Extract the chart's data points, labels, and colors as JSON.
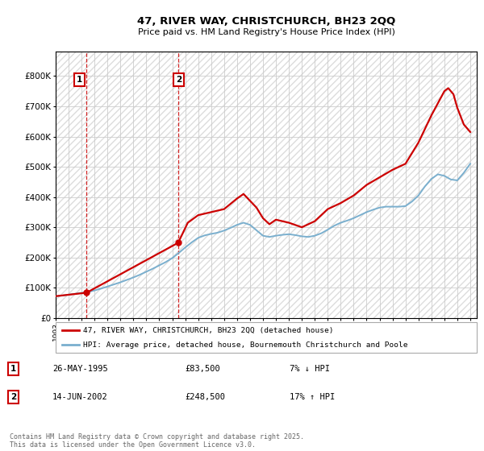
{
  "title1": "47, RIVER WAY, CHRISTCHURCH, BH23 2QQ",
  "title2": "Price paid vs. HM Land Registry's House Price Index (HPI)",
  "legend_line1": "47, RIVER WAY, CHRISTCHURCH, BH23 2QQ (detached house)",
  "legend_line2": "HPI: Average price, detached house, Bournemouth Christchurch and Poole",
  "sale1_date": "26-MAY-1995",
  "sale1_price": "£83,500",
  "sale1_hpi": "7% ↓ HPI",
  "sale2_date": "14-JUN-2002",
  "sale2_price": "£248,500",
  "sale2_hpi": "17% ↑ HPI",
  "footnote": "Contains HM Land Registry data © Crown copyright and database right 2025.\nThis data is licensed under the Open Government Licence v3.0.",
  "red_color": "#cc0000",
  "blue_color": "#7aafce",
  "grid_color": "#cccccc",
  "background_color": "#ffffff",
  "sale1_x": 1995.38,
  "sale1_y": 83500,
  "sale2_x": 2002.45,
  "sale2_y": 248500,
  "xmin": 1993,
  "xmax": 2025.5,
  "ymin": 0,
  "ymax": 880000,
  "yticks": [
    0,
    100000,
    200000,
    300000,
    400000,
    500000,
    600000,
    700000,
    800000
  ],
  "ytick_labels": [
    "£0",
    "£100K",
    "£200K",
    "£300K",
    "£400K",
    "£500K",
    "£600K",
    "£700K",
    "£800K"
  ],
  "xticks": [
    1993,
    1994,
    1995,
    1996,
    1997,
    1998,
    1999,
    2000,
    2001,
    2002,
    2003,
    2004,
    2005,
    2006,
    2007,
    2008,
    2009,
    2010,
    2011,
    2012,
    2013,
    2014,
    2015,
    2016,
    2017,
    2018,
    2019,
    2020,
    2021,
    2022,
    2023,
    2024,
    2025
  ],
  "hpi_data_x": [
    1993.0,
    1993.5,
    1994.0,
    1994.5,
    1995.0,
    1995.5,
    1996.0,
    1996.5,
    1997.0,
    1997.5,
    1998.0,
    1998.5,
    1999.0,
    1999.5,
    2000.0,
    2000.5,
    2001.0,
    2001.5,
    2002.0,
    2002.5,
    2003.0,
    2003.5,
    2004.0,
    2004.5,
    2005.0,
    2005.5,
    2006.0,
    2006.5,
    2007.0,
    2007.5,
    2008.0,
    2008.5,
    2009.0,
    2009.5,
    2010.0,
    2010.5,
    2011.0,
    2011.5,
    2012.0,
    2012.5,
    2013.0,
    2013.5,
    2014.0,
    2014.5,
    2015.0,
    2015.5,
    2016.0,
    2016.5,
    2017.0,
    2017.5,
    2018.0,
    2018.5,
    2019.0,
    2019.5,
    2020.0,
    2020.5,
    2021.0,
    2021.5,
    2022.0,
    2022.5,
    2023.0,
    2023.5,
    2024.0,
    2024.5,
    2025.0
  ],
  "hpi_data_y": [
    72000,
    74000,
    77000,
    80000,
    83000,
    86000,
    91000,
    97000,
    104000,
    111000,
    118000,
    126000,
    134000,
    143000,
    153000,
    163000,
    174000,
    185000,
    198000,
    215000,
    233000,
    250000,
    265000,
    273000,
    278000,
    282000,
    289000,
    298000,
    308000,
    315000,
    308000,
    290000,
    272000,
    268000,
    272000,
    275000,
    277000,
    274000,
    270000,
    268000,
    272000,
    280000,
    292000,
    305000,
    315000,
    322000,
    330000,
    340000,
    350000,
    358000,
    365000,
    368000,
    368000,
    368000,
    370000,
    385000,
    405000,
    435000,
    460000,
    475000,
    470000,
    458000,
    455000,
    480000,
    510000
  ],
  "price_data_x": [
    1993.0,
    1995.38,
    2002.45,
    2003.2,
    2004.0,
    2005.0,
    2006.0,
    2007.0,
    2007.5,
    2008.5,
    2009.0,
    2009.5,
    2010.0,
    2011.0,
    2012.0,
    2013.0,
    2014.0,
    2015.0,
    2016.0,
    2017.0,
    2018.0,
    2019.0,
    2020.0,
    2021.0,
    2022.0,
    2022.5,
    2023.0,
    2023.3,
    2023.7,
    2024.0,
    2024.5,
    2025.0
  ],
  "price_data_y": [
    72000,
    83500,
    248500,
    315000,
    340000,
    350000,
    360000,
    395000,
    410000,
    365000,
    330000,
    310000,
    325000,
    315000,
    300000,
    320000,
    360000,
    380000,
    405000,
    440000,
    465000,
    490000,
    510000,
    580000,
    670000,
    710000,
    750000,
    760000,
    740000,
    695000,
    640000,
    615000
  ]
}
